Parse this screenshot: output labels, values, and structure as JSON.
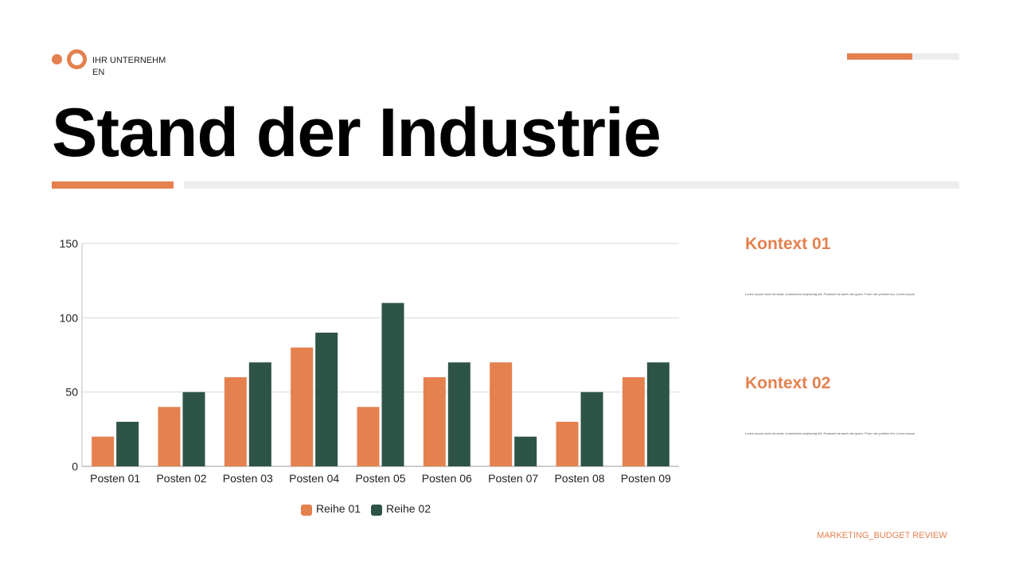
{
  "header": {
    "company": "IHR UNTERNEHMEN",
    "title": "Stand der Industrie",
    "progress_percent": 58
  },
  "colors": {
    "accent": "#e4814f",
    "series2": "#2e5447",
    "track": "#eeeded"
  },
  "context": [
    {
      "title": "Kontext 01",
      "text": "Lorem ipsum dolor sit amet, consectetur adipiscing elit. Praesent sit amet nisl quam. Proin nec pretium leo. Lorem ipsum"
    },
    {
      "title": "Kontext 02",
      "text": "Lorem ipsum dolor sit amet, consectetur adipiscing elit. Praesent sit amet nisl quam. Proin nec pretium leo. Lorem ipsum"
    }
  ],
  "footer": "MARKETING_BUDGET REVIEW",
  "chart_data": {
    "type": "bar",
    "categories": [
      "Posten 01",
      "Posten 02",
      "Posten 03",
      "Posten 04",
      "Posten 05",
      "Posten 06",
      "Posten 07",
      "Posten 08",
      "Posten 09"
    ],
    "series": [
      {
        "name": "Reihe 01",
        "color": "#e4814f",
        "values": [
          20,
          40,
          60,
          80,
          40,
          60,
          70,
          30,
          60
        ]
      },
      {
        "name": "Reihe 02",
        "color": "#2e5447",
        "values": [
          30,
          50,
          70,
          90,
          110,
          70,
          20,
          50,
          70
        ]
      }
    ],
    "yticks": [
      0,
      50,
      100,
      150
    ],
    "ylim": [
      0,
      150
    ],
    "grid": true,
    "legend": "bottom"
  }
}
